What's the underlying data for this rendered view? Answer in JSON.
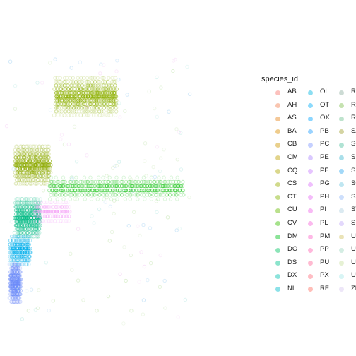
{
  "chart_data": {
    "type": "scatter",
    "title": "",
    "xlabel": "",
    "ylabel": "",
    "grid": false,
    "axes_visible": false,
    "legend": {
      "title": "species_id",
      "placement": "right",
      "columns": [
        [
          "AB",
          "AH",
          "AS",
          "BA",
          "CB",
          "CM",
          "CQ",
          "CS",
          "CT",
          "CU",
          "CV",
          "DM",
          "DO",
          "DS",
          "DX",
          "NL"
        ],
        [
          "OL",
          "OT",
          "OX",
          "PB",
          "PC",
          "PE",
          "PF",
          "PG",
          "PH",
          "PI",
          "PL",
          "PM",
          "PP",
          "PU",
          "PX",
          "RF"
        ],
        [
          "RM",
          "RO",
          "RX",
          "SA",
          "SC",
          "SF",
          "SH",
          "SO",
          "SS",
          "ST",
          "SU",
          "UL",
          "UP",
          "UR",
          "US",
          "ZL"
        ]
      ]
    },
    "series_colors": {
      "AB": "#F8766D",
      "AH": "#F17E4F",
      "AS": "#E7861B",
      "BA": "#DB8E00",
      "CB": "#CE9700",
      "CM": "#BF9F00",
      "CQ": "#ADA700",
      "CS": "#99AE00",
      "CT": "#82B400",
      "CU": "#66BA00",
      "CV": "#39BE00",
      "DM": "#00C11A",
      "DO": "#00C462",
      "DS": "#00C38E",
      "DX": "#00C0AF",
      "NL": "#00BCCB",
      "OL": "#00B5E3",
      "OT": "#00ACF8",
      "OX": "#00A5FF",
      "PB": "#1F9EFF",
      "PC": "#7F96FF",
      "PE": "#AC88FF",
      "PF": "#C77CFF",
      "PG": "#DB72FB",
      "PH": "#E76BF3",
      "PI": "#F066E9",
      "PL": "#F763DA",
      "PM": "#FC61C7",
      "PP": "#FF62B2",
      "PU": "#FF6699",
      "PX": "#FF6C7D",
      "RF": "#FF6E62",
      "RM": "#8FB0A0",
      "RO": "#7FBF50",
      "RX": "#6FC090",
      "SA": "#A0A030",
      "SC": "#50C0A0",
      "SF": "#40B8D0",
      "SH": "#30A8F0",
      "SO": "#70C8E0",
      "SS": "#90B8F8",
      "ST": "#B0D0E0",
      "SU": "#C0A8F8",
      "UL": "#D0C060",
      "UP": "#A0D8C0",
      "UR": "#C8E0A0",
      "US": "#A8E8E8",
      "ZL": "#D8C8F0"
    },
    "clusters": [
      {
        "species": "DM",
        "color": "#8DB000",
        "note": "upper band",
        "x": [
          0.2,
          0.45
        ],
        "y": [
          0.72,
          0.84
        ]
      },
      {
        "species": "DO",
        "color": "#8DAA00",
        "note": "mid-left dense",
        "x": [
          0.04,
          0.18
        ],
        "y": [
          0.5,
          0.62
        ]
      },
      {
        "species": "DS",
        "color": "#2CC82A",
        "note": "long horizontal band",
        "x": [
          0.18,
          0.72
        ],
        "y": [
          0.45,
          0.52
        ]
      },
      {
        "species": "PP",
        "color": "#00BA83",
        "note": "lower-mid",
        "x": [
          0.04,
          0.14
        ],
        "y": [
          0.33,
          0.45
        ]
      },
      {
        "species": "PE",
        "color": "#00AEEB",
        "note": "lower",
        "x": [
          0.02,
          0.1
        ],
        "y": [
          0.24,
          0.33
        ]
      },
      {
        "species": "PF",
        "color": "#6D8CF9",
        "note": "bottom narrow",
        "x": [
          0.02,
          0.06
        ],
        "y": [
          0.12,
          0.24
        ]
      },
      {
        "species": "PM",
        "color": "#F5A8F7",
        "note": "pink faint",
        "x": [
          0.12,
          0.26
        ],
        "y": [
          0.38,
          0.44
        ]
      }
    ]
  }
}
